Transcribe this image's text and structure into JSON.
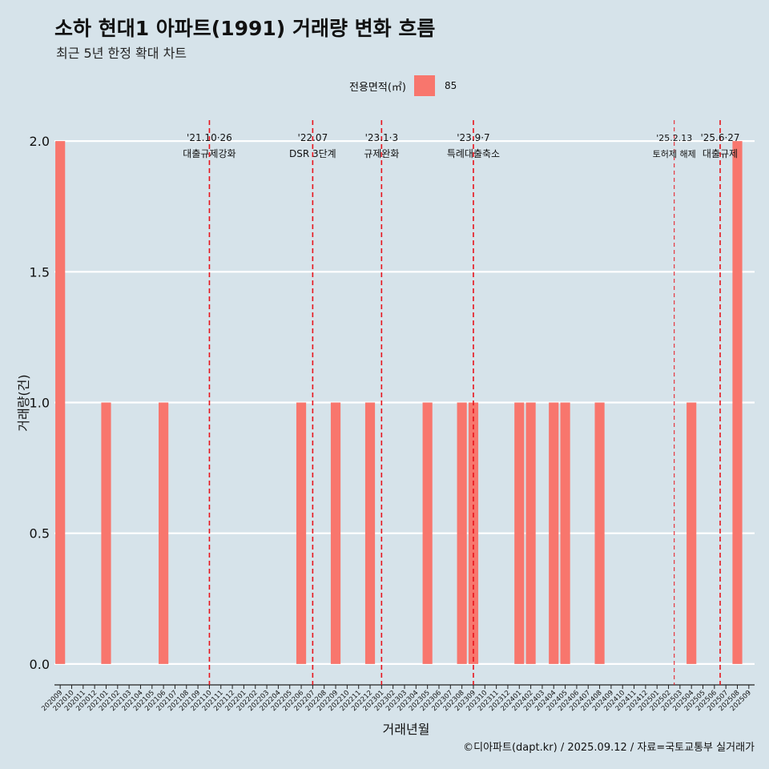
{
  "header": {
    "title": "소하 현대1 아파트(1991) 거래량 변화 흐름",
    "subtitle": "최근 5년 한정 확대 차트"
  },
  "legend": {
    "title": "전용면적(㎡)",
    "label": "85",
    "color": "#f8766d"
  },
  "caption": "©디아파트(dapt.kr) / 2025.09.12 / 자료=국토교통부 실거래가",
  "chart_data": {
    "type": "bar",
    "title": "소하 현대1 아파트(1991) 거래량 변화 흐름",
    "xlabel": "거래년월",
    "ylabel": "거래량(건)",
    "ylim": [
      -0.08,
      2.08
    ],
    "yticks": [
      0.0,
      0.5,
      1.0,
      1.5,
      2.0
    ],
    "ytick_labels": [
      "0.0",
      "0.5",
      "1.0",
      "1.5",
      "2.0"
    ],
    "grid": true,
    "legend_position": "top-center",
    "categories": [
      "202009",
      "202010",
      "202011",
      "202012",
      "202101",
      "202102",
      "202103",
      "202104",
      "202105",
      "202106",
      "202107",
      "202108",
      "202109",
      "202110",
      "202111",
      "202112",
      "202201",
      "202202",
      "202203",
      "202204",
      "202205",
      "202206",
      "202207",
      "202208",
      "202209",
      "202210",
      "202211",
      "202212",
      "202301",
      "202302",
      "202303",
      "202304",
      "202305",
      "202306",
      "202307",
      "202308",
      "202309",
      "202310",
      "202311",
      "202312",
      "202401",
      "202402",
      "202403",
      "202404",
      "202405",
      "202406",
      "202407",
      "202408",
      "202409",
      "202410",
      "202411",
      "202412",
      "202501",
      "202502",
      "202503",
      "202504",
      "202505",
      "202506",
      "202507",
      "202508",
      "202509"
    ],
    "series": [
      {
        "name": "85",
        "color": "#f8766d",
        "values": [
          2,
          0,
          0,
          0,
          1,
          0,
          0,
          0,
          0,
          1,
          0,
          0,
          0,
          0,
          0,
          0,
          0,
          0,
          0,
          0,
          0,
          1,
          0,
          0,
          1,
          0,
          0,
          1,
          0,
          0,
          0,
          0,
          1,
          0,
          0,
          1,
          1,
          0,
          0,
          0,
          1,
          1,
          0,
          1,
          1,
          0,
          0,
          1,
          0,
          0,
          0,
          0,
          0,
          0,
          0,
          1,
          0,
          0,
          0,
          2,
          0
        ]
      }
    ],
    "events": [
      {
        "at": 13.0,
        "date": "'21.10·26",
        "label": "대출규제강화",
        "style": "thick"
      },
      {
        "at": 22.0,
        "date": "'22.07",
        "label": "DSR 3단계",
        "style": "thick"
      },
      {
        "at": 28.0,
        "date": "'23.1·3",
        "label": "규제완화",
        "style": "thick"
      },
      {
        "at": 36.0,
        "date": "'23.9·7",
        "label": "특례대출축소",
        "style": "thick"
      },
      {
        "at": 53.5,
        "date": "'25.2.13",
        "label": "토허제 해제",
        "style": "thin"
      },
      {
        "at": 57.5,
        "date": "'25.6·27",
        "label": "대출규제",
        "style": "thick"
      }
    ]
  }
}
